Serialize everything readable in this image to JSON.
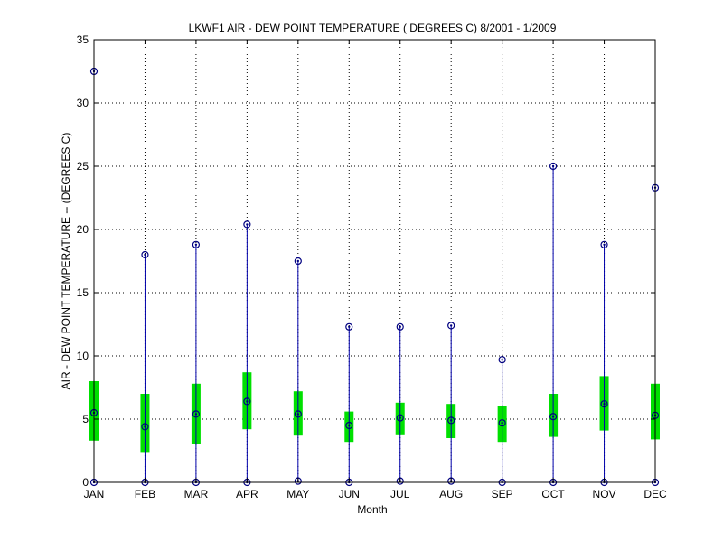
{
  "chart_data": {
    "type": "box",
    "title": "LKWF1  AIR - DEW POINT TEMPERATURE ( DEGREES C) 8/2001 - 1/2009",
    "xlabel": "Month",
    "ylabel": "AIR - DEW POINT TEMPERATURE -- (DEGREES C)",
    "ylim": [
      0,
      35
    ],
    "yticks": [
      0,
      5,
      10,
      15,
      20,
      25,
      30,
      35
    ],
    "grid": true,
    "categories": [
      "JAN",
      "FEB",
      "MAR",
      "APR",
      "MAY",
      "JUN",
      "JUL",
      "AUG",
      "SEP",
      "OCT",
      "NOV",
      "DEC"
    ],
    "series": [
      {
        "min": [
          0.0,
          0.0,
          0.0,
          0.0,
          0.1,
          0.0,
          0.1,
          0.1,
          0.0,
          0.0,
          0.0,
          0.0
        ],
        "q1": [
          3.3,
          2.4,
          3.0,
          4.2,
          3.7,
          3.2,
          3.8,
          3.5,
          3.2,
          3.6,
          4.1,
          3.4
        ],
        "median": [
          5.5,
          4.4,
          5.4,
          6.4,
          5.4,
          4.5,
          5.1,
          4.9,
          4.7,
          5.2,
          6.2,
          5.3
        ],
        "q3": [
          8.0,
          7.0,
          7.8,
          8.7,
          7.2,
          5.6,
          6.3,
          6.2,
          6.0,
          7.0,
          8.4,
          7.8
        ],
        "max": [
          32.5,
          18.0,
          18.8,
          20.4,
          17.5,
          12.3,
          12.3,
          12.4,
          9.7,
          25.0,
          18.8,
          23.3
        ]
      }
    ],
    "colors": {
      "whisker": "#0000aa",
      "box": "#00e000",
      "marker": "#000080",
      "grid": "#000000"
    }
  }
}
